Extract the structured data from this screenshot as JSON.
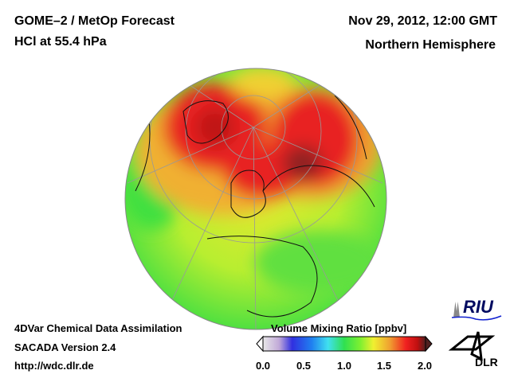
{
  "header": {
    "title": "GOME–2 / MetOp Forecast",
    "subtitle": "HCl at 55.4 hPa",
    "datetime": "Nov 29, 2012, 12:00 GMT",
    "region": "Northern Hemisphere"
  },
  "footer": {
    "line1": "4DVar Chemical Data Assimilation",
    "line2": "SACADA Version 2.4",
    "url": "http://wdc.dlr.de"
  },
  "colorbar": {
    "title": "Volume Mixing Ratio [ppbv]",
    "ticks": [
      "0.0",
      "0.5",
      "1.0",
      "1.5",
      "2.0"
    ],
    "range": [
      0.0,
      2.0
    ],
    "colors": [
      "#e8e8e8",
      "#c0a8d8",
      "#3030e0",
      "#2080f0",
      "#40e0f0",
      "#30e050",
      "#80f030",
      "#f0f030",
      "#f0a030",
      "#f02020",
      "#c01010",
      "#502020"
    ]
  },
  "logos": {
    "riu": "RIU",
    "dlr": "DLR"
  }
}
